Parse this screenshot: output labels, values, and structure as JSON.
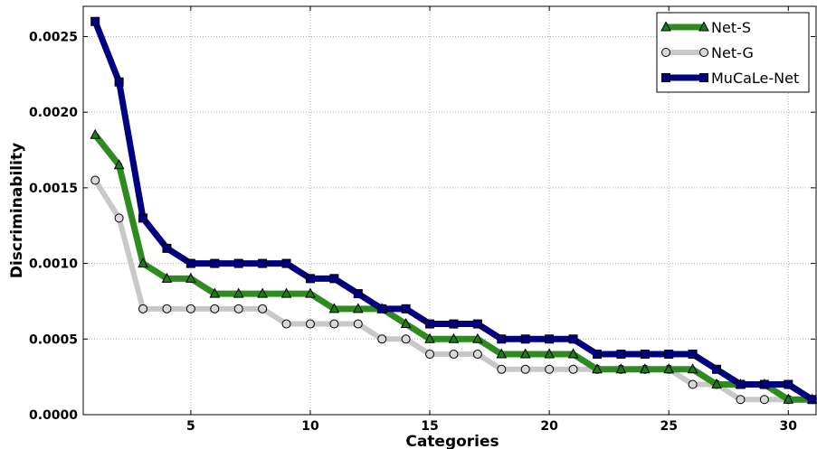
{
  "chart_data": {
    "type": "line",
    "xlabel": "Categories",
    "ylabel": "Discriminability",
    "xlim": [
      0.5,
      31.2
    ],
    "ylim": [
      0,
      0.0027
    ],
    "x_ticks": [
      5,
      10,
      15,
      20,
      25,
      30
    ],
    "y_ticks": [
      {
        "value": 0,
        "label": "0.0000"
      },
      {
        "value": 0.0005,
        "label": "0.0005"
      },
      {
        "value": 0.001,
        "label": "0.0010"
      },
      {
        "value": 0.0015,
        "label": "0.0015"
      },
      {
        "value": 0.002,
        "label": "0.0020"
      },
      {
        "value": 0.0025,
        "label": "0.0025"
      }
    ],
    "grid": true,
    "legend_position": "top-right",
    "x": [
      1,
      2,
      3,
      4,
      5,
      6,
      7,
      8,
      9,
      10,
      11,
      12,
      13,
      14,
      15,
      16,
      17,
      18,
      19,
      20,
      21,
      22,
      23,
      24,
      25,
      26,
      27,
      28,
      29,
      30,
      31
    ],
    "series": [
      {
        "name": "Net-S",
        "marker": "triangle",
        "color": "#2e8b1f",
        "values": [
          0.00185,
          0.00165,
          0.001,
          0.0009,
          0.0009,
          0.0008,
          0.0008,
          0.0008,
          0.0008,
          0.0008,
          0.0007,
          0.0007,
          0.0007,
          0.0006,
          0.0005,
          0.0005,
          0.0005,
          0.0004,
          0.0004,
          0.0004,
          0.0004,
          0.0003,
          0.0003,
          0.0003,
          0.0003,
          0.0003,
          0.0002,
          0.0002,
          0.0002,
          0.0001,
          0.0001
        ]
      },
      {
        "name": "Net-G",
        "marker": "circle",
        "color": "#c8c8c8",
        "values": [
          0.00155,
          0.0013,
          0.0007,
          0.0007,
          0.0007,
          0.0007,
          0.0007,
          0.0007,
          0.0006,
          0.0006,
          0.0006,
          0.0006,
          0.0005,
          0.0005,
          0.0004,
          0.0004,
          0.0004,
          0.0003,
          0.0003,
          0.0003,
          0.0003,
          0.0003,
          0.0003,
          0.0003,
          0.0003,
          0.0002,
          0.0002,
          0.0001,
          0.0001,
          0.0001,
          0.0001
        ]
      },
      {
        "name": "MuCaLe-Net",
        "marker": "square",
        "color": "#000080",
        "values": [
          0.0026,
          0.0022,
          0.0013,
          0.0011,
          0.001,
          0.001,
          0.001,
          0.001,
          0.001,
          0.0009,
          0.0009,
          0.0008,
          0.0007,
          0.0007,
          0.0006,
          0.0006,
          0.0006,
          0.0005,
          0.0005,
          0.0005,
          0.0005,
          0.0004,
          0.0004,
          0.0004,
          0.0004,
          0.0004,
          0.0003,
          0.0002,
          0.0002,
          0.0002,
          0.0001
        ]
      }
    ]
  }
}
